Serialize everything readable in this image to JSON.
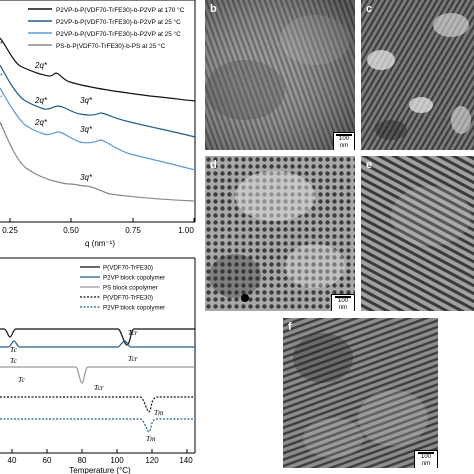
{
  "saxs": {
    "legend": [
      {
        "label": "P2VP-b-P(VDF70-TrFE30)-b-P2VP at 170 °C",
        "color": "#111111"
      },
      {
        "label": "P2VP-b-P(VDF70-TrFE30)-b-P2VP at 25 °C",
        "color": "#1f5f8b"
      },
      {
        "label": "P2VP-b-P(VDF70-TrFE30)-b-P2VP at 25 °C",
        "color": "#5b9bd5"
      },
      {
        "label": "PS-b-P(VDF70-TrFE30)-b-PS at 25 °C",
        "color": "#888888"
      }
    ],
    "peak_labels": [
      "2q*",
      "2q*",
      "3q*",
      "2q*",
      "3q*",
      "3q*"
    ],
    "x_ticks": [
      "0.25",
      "0.50",
      "0.75",
      "1.00"
    ],
    "x_label": "q (nm⁻¹)"
  },
  "dsc": {
    "legend": [
      {
        "label": "P(VDF70-TrFE30)",
        "color": "#111111",
        "style": "solid"
      },
      {
        "label": "P2VP block copolymer",
        "color": "#1f5f8b",
        "style": "solid"
      },
      {
        "label": "PS block copolymer",
        "color": "#999999",
        "style": "solid"
      },
      {
        "label": "P(VDF70-TrFE30)",
        "color": "#111111",
        "style": "dashed"
      },
      {
        "label": "P2VP block copolymer",
        "color": "#1f5f8b",
        "style": "dashed"
      }
    ],
    "annotations": [
      "Tc",
      "Tcr",
      "Tc",
      "Tcr",
      "Tc",
      "Tcr",
      "Tm",
      "Tm"
    ],
    "x_ticks": [
      "40",
      "60",
      "80",
      "100",
      "120",
      "140"
    ],
    "x_label": "Temperature (°C)"
  },
  "panels": {
    "b": {
      "label": "b",
      "scale": "100 nm"
    },
    "c": {
      "label": "c"
    },
    "d": {
      "label": "d",
      "scale": "100 nm"
    },
    "e": {
      "label": "e"
    },
    "f": {
      "label": "f",
      "scale": "100 nm"
    }
  }
}
